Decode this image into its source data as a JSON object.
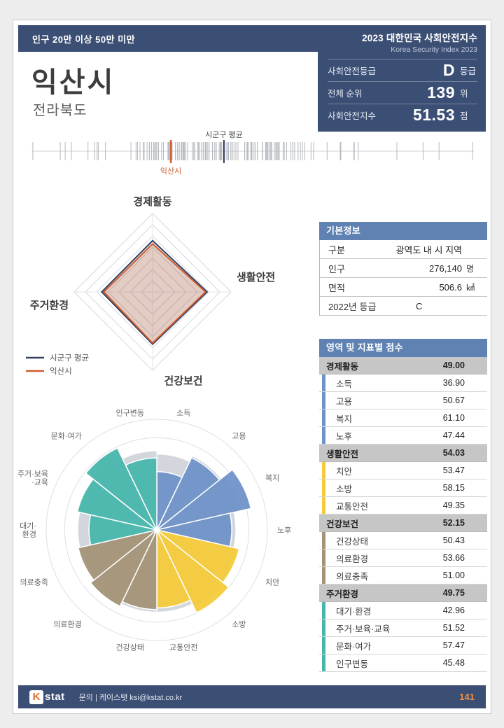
{
  "accent": {
    "navy": "#3b4e74",
    "orange": "#cf5b2e",
    "panel_blue": "#5f82b2",
    "group_gray": "#c6c6c6",
    "blue": "#6f92c7",
    "yellow": "#f5cb3a",
    "tan": "#a39377",
    "teal": "#48b6ac"
  },
  "header": {
    "population_band": "인구 20만 이상 50만 미만",
    "title_kr": "2023 대한민국 사회안전지수",
    "title_en": "Korea Security Index 2023",
    "city": "익산시",
    "province": "전라북도",
    "stats": [
      {
        "label": "사회안전등급",
        "value": "D",
        "unit": "등급"
      },
      {
        "label": "전체 순위",
        "value": "139",
        "unit": "위"
      },
      {
        "label": "사회안전지수",
        "value": "51.53",
        "unit": "점"
      }
    ]
  },
  "basic_info": {
    "title": "기본정보",
    "rows": [
      {
        "label": "구분",
        "value": "광역도 내 시 지역",
        "unit": ""
      },
      {
        "label": "인구",
        "value": "276,140",
        "unit": "명"
      },
      {
        "label": "면적",
        "value": "506.6",
        "unit": "㎢"
      },
      {
        "label": "2022년 등급",
        "value": "C",
        "unit": ""
      }
    ]
  },
  "scores": {
    "title": "영역 및 지표별 점수",
    "groups": [
      {
        "name": "경제활동",
        "score": "49.00",
        "color": "#6f92c7",
        "items": [
          [
            "소득",
            "36.90"
          ],
          [
            "고용",
            "50.67"
          ],
          [
            "복지",
            "61.10"
          ],
          [
            "노후",
            "47.44"
          ]
        ]
      },
      {
        "name": "생활안전",
        "score": "54.03",
        "color": "#f5cb3a",
        "items": [
          [
            "치안",
            "53.47"
          ],
          [
            "소방",
            "58.15"
          ],
          [
            "교통안전",
            "49.35"
          ]
        ]
      },
      {
        "name": "건강보건",
        "score": "52.15",
        "color": "#a39377",
        "items": [
          [
            "건강상태",
            "50.43"
          ],
          [
            "의료환경",
            "53.66"
          ],
          [
            "의료충족",
            "51.00"
          ]
        ]
      },
      {
        "name": "주거환경",
        "score": "49.75",
        "color": "#48b6ac",
        "items": [
          [
            "대기·환경",
            "42.96"
          ],
          [
            "주거·보육·교육",
            "51.52"
          ],
          [
            "문화·여가",
            "57.47"
          ],
          [
            "인구변동",
            "45.48"
          ]
        ]
      }
    ]
  },
  "footer": {
    "logo_k": "K",
    "logo_stat": "stat",
    "contact": "문의 | 케이스탯  ksi@kstat.co.kr",
    "page": "141"
  },
  "chart_data": [
    {
      "type": "strip",
      "description": "distribution of all city scores shown as vertical tick marks",
      "markers": [
        {
          "name": "시군구 평균",
          "pos": 0.435,
          "color": "#2e3d5c"
        },
        {
          "name": "익산시",
          "pos": 0.315,
          "color": "#cf5b2e"
        }
      ]
    },
    {
      "type": "radar",
      "categories": [
        "경제활동",
        "생활안전",
        "건강보건",
        "주거환경"
      ],
      "series": [
        {
          "name": "시군구 평균",
          "color": "#33415f",
          "values": [
            52.3,
            55.6,
            53.4,
            51.9
          ]
        },
        {
          "name": "익산시",
          "color": "#cf5b2e",
          "values": [
            49.0,
            54.03,
            52.15,
            49.75
          ]
        }
      ],
      "rmax": 80,
      "legend_position": "bottom-left"
    },
    {
      "type": "polar_bar",
      "categories": [
        "소득",
        "고용",
        "복지",
        "노후",
        "치안",
        "소방",
        "교통안전",
        "건강상태",
        "의료환경",
        "의료충족",
        "대기·\n환경",
        "주거·보육\n·교육",
        "문화·여가",
        "인구변동"
      ],
      "series": [
        {
          "name": "시군구 평균",
          "color": "#d3d7dd",
          "values": [
            48,
            52,
            55,
            50,
            52,
            54,
            52,
            52,
            50,
            49,
            50,
            50,
            52,
            50
          ]
        },
        {
          "name": "익산시",
          "values": [
            36.9,
            50.67,
            61.1,
            47.44,
            53.47,
            58.15,
            49.35,
            50.43,
            53.66,
            51.0,
            42.96,
            51.52,
            57.47,
            45.48
          ],
          "colors": [
            "#6f92c7",
            "#6f92c7",
            "#6f92c7",
            "#6f92c7",
            "#f5cb3a",
            "#f5cb3a",
            "#f5cb3a",
            "#a39377",
            "#a39377",
            "#a39377",
            "#48b6ac",
            "#48b6ac",
            "#48b6ac",
            "#48b6ac"
          ]
        }
      ],
      "rmax": 70,
      "grid": "circles"
    }
  ]
}
